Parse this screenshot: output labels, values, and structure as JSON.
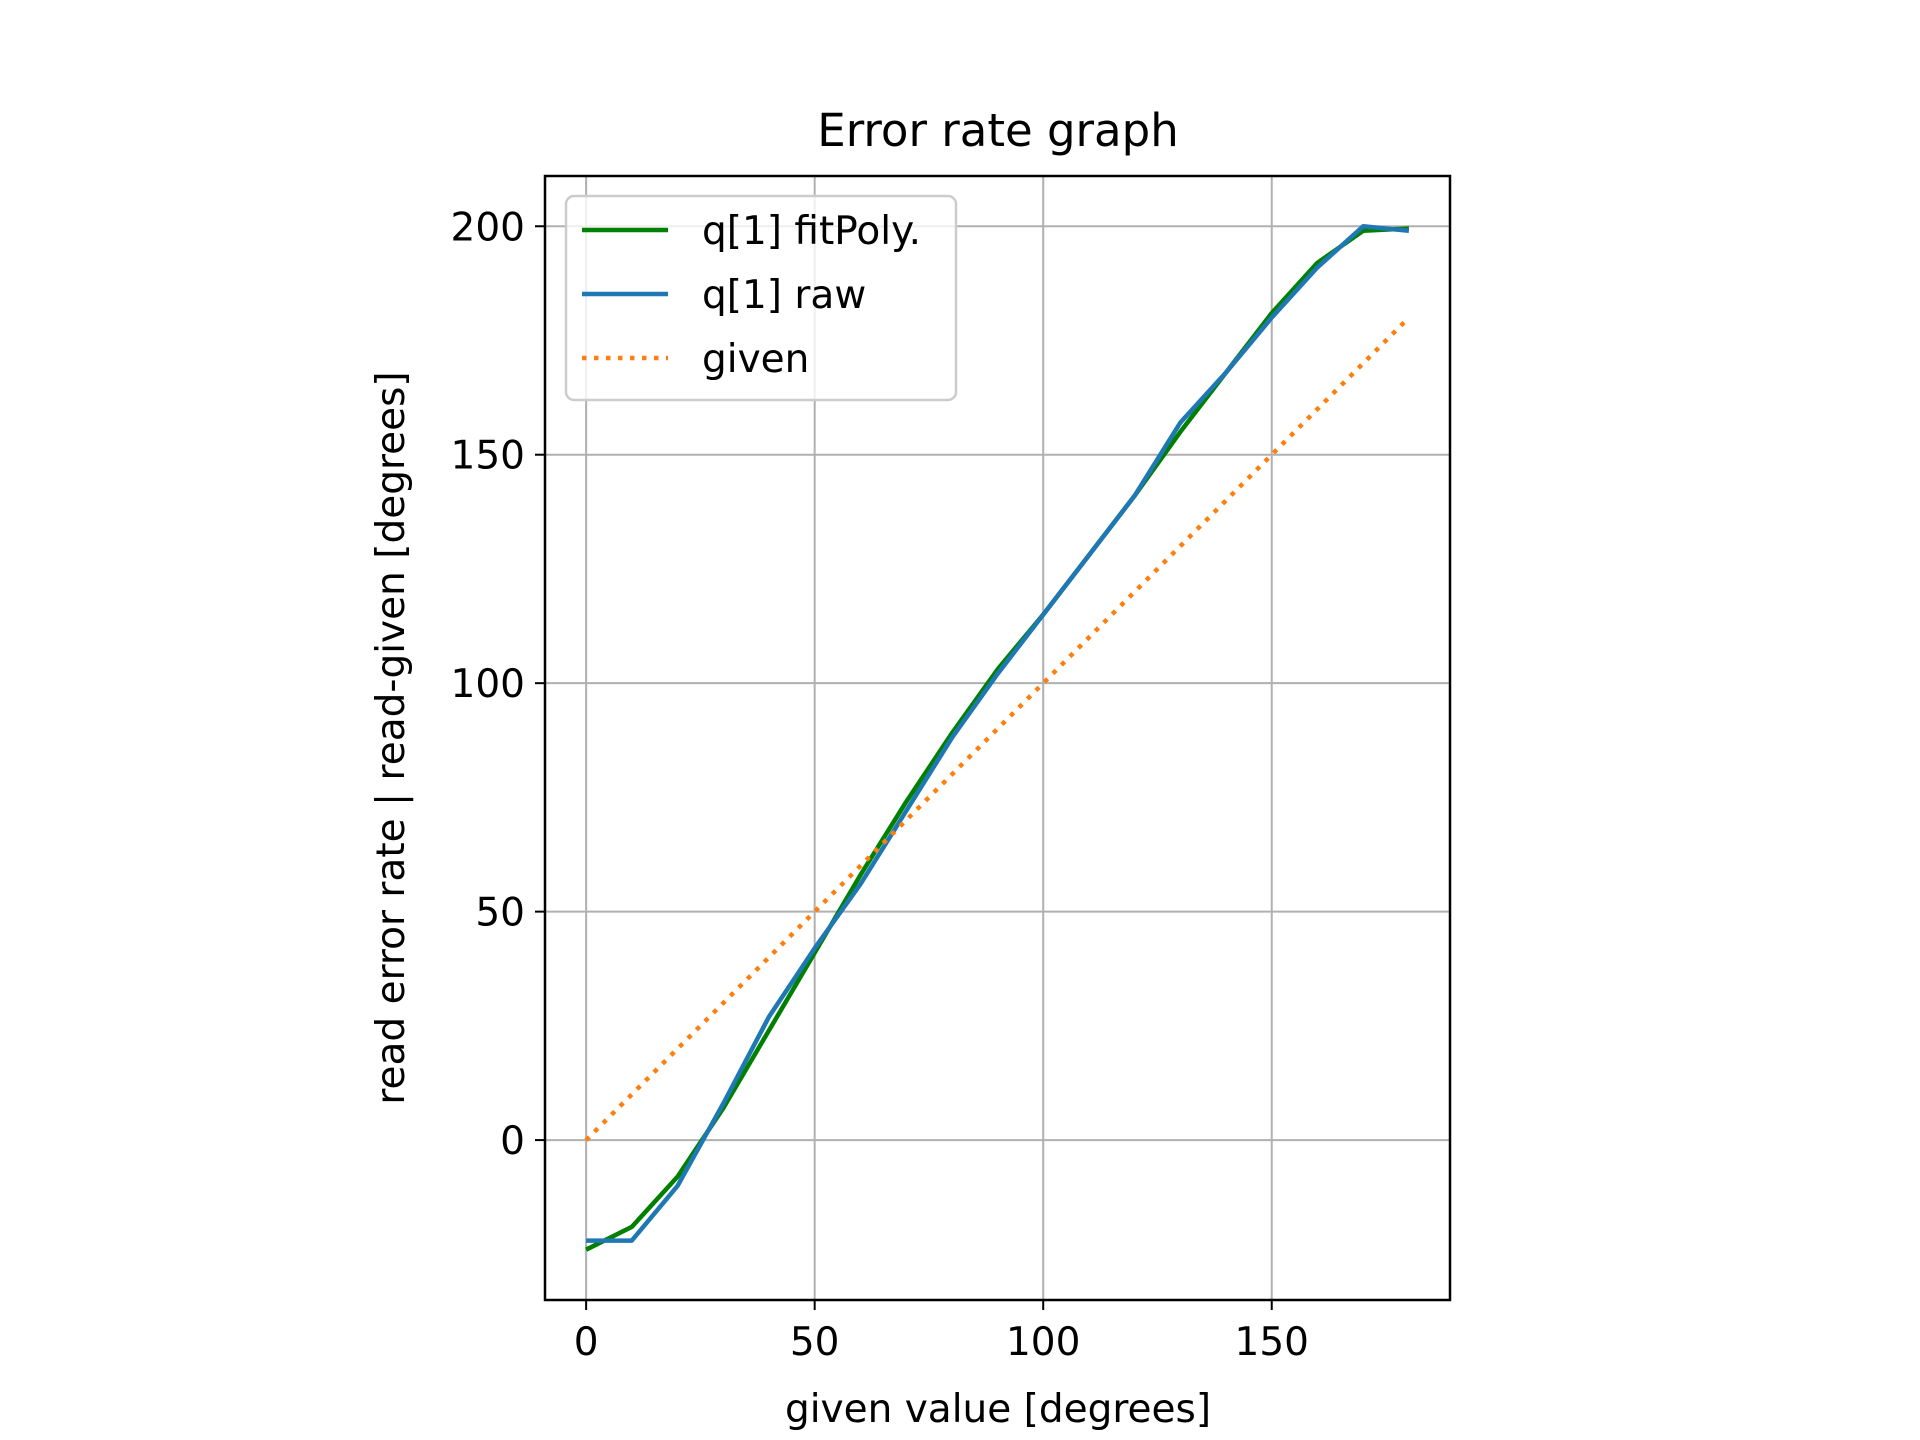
{
  "chart_data": {
    "type": "line",
    "title": "Error rate graph",
    "xlabel": "given value [degrees]",
    "ylabel": "read error rate | read-given [degrees]",
    "xlim": [
      -9,
      189
    ],
    "ylim": [
      -35,
      211
    ],
    "xticks": [
      0,
      50,
      100,
      150
    ],
    "yticks": [
      0,
      50,
      100,
      150,
      200
    ],
    "grid": true,
    "legend_position": "top-left",
    "series": [
      {
        "name": "q[1] fitPoly.",
        "color": "#008000",
        "style": "solid",
        "x": [
          0,
          10,
          20,
          30,
          40,
          50,
          60,
          70,
          80,
          90,
          100,
          110,
          120,
          130,
          140,
          150,
          160,
          170,
          180
        ],
        "y": [
          -24,
          -19,
          -8,
          7,
          24,
          41,
          58,
          74,
          89,
          103,
          115,
          128,
          141,
          155,
          168,
          181,
          192,
          199,
          199.5
        ]
      },
      {
        "name": "q[1] raw",
        "color": "#1f77b4",
        "style": "solid",
        "x": [
          0,
          10,
          20,
          30,
          40,
          50,
          60,
          70,
          80,
          90,
          100,
          110,
          120,
          130,
          140,
          150,
          160,
          170,
          180
        ],
        "y": [
          -22,
          -22,
          -10,
          8,
          27,
          42,
          56,
          72,
          88,
          102,
          115,
          128,
          141,
          157,
          168,
          180,
          191,
          200,
          199
        ]
      },
      {
        "name": "given",
        "color": "#ff7f0e",
        "style": "dotted",
        "x": [
          0,
          180
        ],
        "y": [
          0,
          180
        ]
      }
    ]
  }
}
